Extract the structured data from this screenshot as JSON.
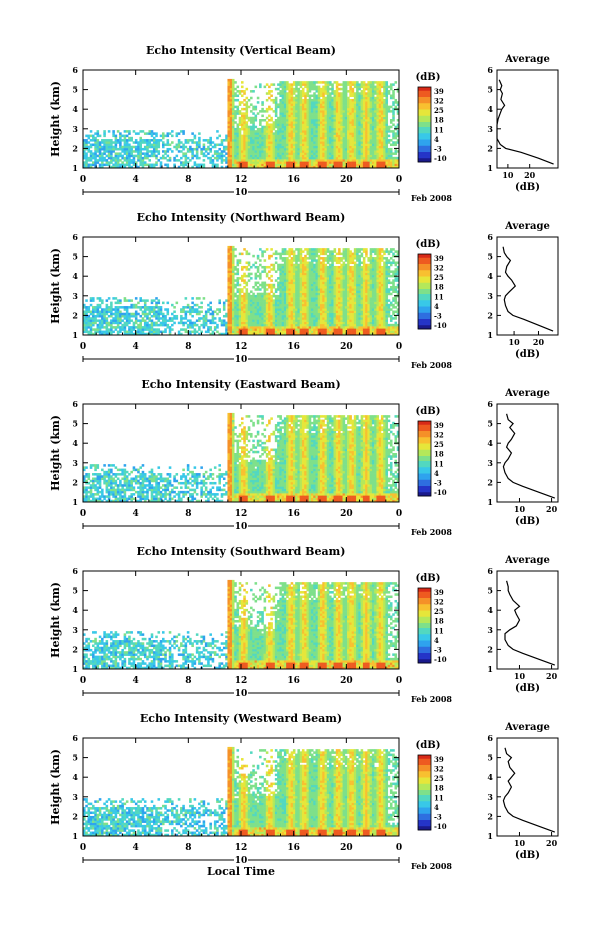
{
  "chart_data": {
    "type": "heatmap",
    "date_label": "Feb 2008",
    "footer_xlabel": "Local Time",
    "ylabel": "Height (km)",
    "unit_label": "(dB)",
    "average_title": "Average",
    "average_xlabel": "(dB)",
    "x_ticks": [
      "0",
      "4",
      "8",
      "12",
      "16",
      "20",
      "0"
    ],
    "x_day_label": "10",
    "y_ticks": [
      "1",
      "2",
      "3",
      "4",
      "5",
      "6"
    ],
    "ylim": [
      1,
      6
    ],
    "xlim_hours": [
      0,
      24
    ],
    "colorbar_ticks": [
      "39",
      "32",
      "25",
      "18",
      "11",
      "4",
      "-3",
      "-10"
    ],
    "colorbar_range": [
      -10,
      39
    ],
    "panels": [
      {
        "title": "Echo Intensity (Vertical Beam)",
        "avg_ticks": [
          "10",
          "20"
        ],
        "avg_xlim": [
          5,
          33
        ],
        "avg_profile": {
          "height": [
            1.2,
            1.5,
            1.8,
            2.0,
            2.2,
            2.5,
            2.8,
            3.0,
            3.2,
            3.5,
            3.8,
            4.0,
            4.2,
            4.5,
            4.8,
            5.0,
            5.2,
            5.5
          ],
          "db": [
            31,
            24,
            16,
            9,
            6.5,
            5,
            4.5,
            4.2,
            4.6,
            5.5,
            6.5,
            7.2,
            8.5,
            6.8,
            7.5,
            6.5,
            7.2,
            6.0
          ]
        }
      },
      {
        "title": "Echo Intensity (Northward Beam)",
        "avg_ticks": [
          "10",
          "20"
        ],
        "avg_xlim": [
          3,
          28
        ],
        "avg_profile": {
          "height": [
            1.2,
            1.5,
            1.8,
            2.0,
            2.2,
            2.5,
            2.8,
            3.0,
            3.2,
            3.5,
            3.8,
            4.0,
            4.2,
            4.5,
            4.8,
            5.0,
            5.2,
            5.5
          ],
          "db": [
            26,
            20,
            14,
            9.5,
            7.5,
            6.5,
            6.0,
            6.5,
            8.0,
            10.5,
            9.0,
            7.5,
            6.5,
            7.0,
            8.5,
            7.0,
            6.0,
            5.5
          ]
        }
      },
      {
        "title": "Echo Intensity (Eastward Beam)",
        "avg_ticks": [
          "10",
          "20"
        ],
        "avg_xlim": [
          3,
          22
        ],
        "avg_profile": {
          "height": [
            1.2,
            1.5,
            1.8,
            2.0,
            2.2,
            2.5,
            2.8,
            3.0,
            3.2,
            3.5,
            3.8,
            4.0,
            4.2,
            4.5,
            4.8,
            5.0,
            5.2,
            5.5
          ],
          "db": [
            21,
            16,
            11,
            8,
            6.5,
            5.5,
            5.0,
            5.5,
            6.5,
            7.5,
            6.0,
            6.5,
            7.5,
            8.5,
            7.0,
            8.0,
            6.5,
            6.0
          ]
        }
      },
      {
        "title": "Echo Intensity (Southward Beam)",
        "avg_ticks": [
          "10",
          "20"
        ],
        "avg_xlim": [
          3,
          22
        ],
        "avg_profile": {
          "height": [
            1.2,
            1.5,
            1.8,
            2.0,
            2.2,
            2.5,
            2.8,
            3.0,
            3.2,
            3.5,
            3.8,
            4.0,
            4.2,
            4.5,
            4.8,
            5.0,
            5.2,
            5.5
          ],
          "db": [
            21,
            16,
            11,
            8,
            6.5,
            5.5,
            5.5,
            7.0,
            9.0,
            10.0,
            9.0,
            8.5,
            10.0,
            8.0,
            7.0,
            6.5,
            6.5,
            6.0
          ]
        }
      },
      {
        "title": "Echo Intensity (Westward Beam)",
        "avg_ticks": [
          "10",
          "20"
        ],
        "avg_xlim": [
          3,
          22
        ],
        "avg_profile": {
          "height": [
            1.2,
            1.5,
            1.8,
            2.0,
            2.2,
            2.5,
            2.8,
            3.0,
            3.2,
            3.5,
            3.8,
            4.0,
            4.2,
            4.5,
            4.8,
            5.0,
            5.2,
            5.5
          ],
          "db": [
            21,
            16,
            11,
            8,
            6.5,
            5.5,
            5.0,
            5.5,
            6.5,
            7.5,
            6.5,
            7.5,
            8.5,
            7.0,
            6.5,
            7.5,
            6.0,
            5.5
          ]
        }
      }
    ],
    "colormap": [
      "#1a1a8c",
      "#2535c8",
      "#2e6ee0",
      "#2fa3ee",
      "#38c8e8",
      "#52d8c0",
      "#7ee08a",
      "#b4e85a",
      "#e6e63a",
      "#f8c030",
      "#f59028",
      "#ee5a20",
      "#d82a18"
    ]
  }
}
